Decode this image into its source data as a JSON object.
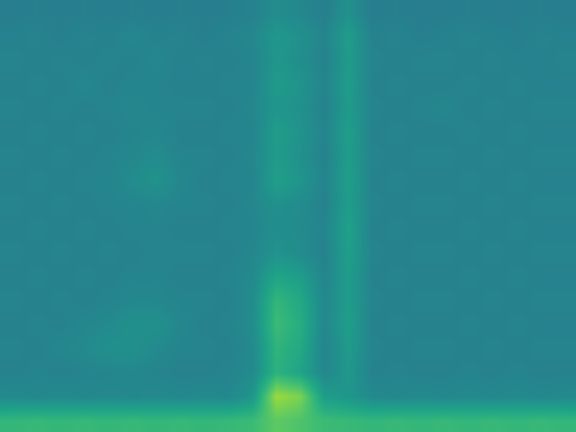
{
  "chart_data": {
    "type": "heatmap",
    "tick_labels": false,
    "zlim": [
      0,
      1
    ],
    "cells": [
      [
        0.42,
        0.43,
        0.42,
        0.43,
        0.42,
        0.43,
        0.42,
        0.43,
        0.42,
        0.43,
        0.44,
        0.48,
        0.46,
        0.43,
        0.5,
        0.42,
        0.43,
        0.42,
        0.42,
        0.43,
        0.42,
        0.42,
        0.43,
        0.42
      ],
      [
        0.44,
        0.45,
        0.43,
        0.45,
        0.44,
        0.46,
        0.44,
        0.45,
        0.43,
        0.45,
        0.46,
        0.53,
        0.5,
        0.45,
        0.55,
        0.44,
        0.45,
        0.43,
        0.44,
        0.45,
        0.44,
        0.43,
        0.45,
        0.44
      ],
      [
        0.45,
        0.44,
        0.45,
        0.44,
        0.45,
        0.44,
        0.46,
        0.44,
        0.45,
        0.44,
        0.45,
        0.52,
        0.49,
        0.44,
        0.54,
        0.45,
        0.44,
        0.45,
        0.45,
        0.44,
        0.45,
        0.44,
        0.44,
        0.45
      ],
      [
        0.44,
        0.45,
        0.44,
        0.46,
        0.44,
        0.45,
        0.45,
        0.44,
        0.44,
        0.45,
        0.45,
        0.54,
        0.51,
        0.45,
        0.55,
        0.44,
        0.45,
        0.44,
        0.44,
        0.45,
        0.44,
        0.45,
        0.44,
        0.44
      ],
      [
        0.45,
        0.44,
        0.45,
        0.44,
        0.45,
        0.46,
        0.45,
        0.45,
        0.45,
        0.44,
        0.46,
        0.52,
        0.5,
        0.44,
        0.54,
        0.45,
        0.44,
        0.45,
        0.46,
        0.44,
        0.45,
        0.44,
        0.45,
        0.45
      ],
      [
        0.44,
        0.45,
        0.44,
        0.45,
        0.44,
        0.45,
        0.46,
        0.44,
        0.44,
        0.45,
        0.45,
        0.55,
        0.51,
        0.45,
        0.56,
        0.44,
        0.45,
        0.44,
        0.44,
        0.45,
        0.44,
        0.45,
        0.44,
        0.44
      ],
      [
        0.45,
        0.44,
        0.45,
        0.44,
        0.45,
        0.46,
        0.48,
        0.45,
        0.45,
        0.44,
        0.46,
        0.54,
        0.5,
        0.44,
        0.55,
        0.45,
        0.44,
        0.45,
        0.45,
        0.44,
        0.45,
        0.44,
        0.45,
        0.45
      ],
      [
        0.44,
        0.45,
        0.44,
        0.45,
        0.45,
        0.48,
        0.51,
        0.46,
        0.44,
        0.45,
        0.45,
        0.56,
        0.52,
        0.45,
        0.56,
        0.44,
        0.45,
        0.44,
        0.44,
        0.45,
        0.44,
        0.45,
        0.44,
        0.44
      ],
      [
        0.45,
        0.44,
        0.45,
        0.44,
        0.45,
        0.45,
        0.46,
        0.45,
        0.45,
        0.44,
        0.46,
        0.5,
        0.48,
        0.44,
        0.55,
        0.45,
        0.44,
        0.45,
        0.45,
        0.44,
        0.45,
        0.44,
        0.45,
        0.45
      ],
      [
        0.44,
        0.45,
        0.44,
        0.45,
        0.44,
        0.45,
        0.45,
        0.44,
        0.44,
        0.45,
        0.45,
        0.49,
        0.47,
        0.45,
        0.57,
        0.44,
        0.45,
        0.44,
        0.44,
        0.45,
        0.44,
        0.45,
        0.44,
        0.44
      ],
      [
        0.45,
        0.44,
        0.45,
        0.44,
        0.45,
        0.44,
        0.45,
        0.45,
        0.45,
        0.44,
        0.46,
        0.51,
        0.48,
        0.44,
        0.56,
        0.45,
        0.44,
        0.45,
        0.45,
        0.44,
        0.45,
        0.44,
        0.45,
        0.45
      ],
      [
        0.44,
        0.45,
        0.44,
        0.45,
        0.44,
        0.45,
        0.45,
        0.44,
        0.44,
        0.45,
        0.47,
        0.58,
        0.55,
        0.45,
        0.55,
        0.44,
        0.45,
        0.44,
        0.44,
        0.45,
        0.44,
        0.45,
        0.44,
        0.44
      ],
      [
        0.45,
        0.44,
        0.45,
        0.44,
        0.45,
        0.46,
        0.46,
        0.45,
        0.45,
        0.44,
        0.48,
        0.66,
        0.6,
        0.46,
        0.55,
        0.45,
        0.44,
        0.45,
        0.45,
        0.44,
        0.45,
        0.44,
        0.45,
        0.45
      ],
      [
        0.44,
        0.45,
        0.44,
        0.46,
        0.47,
        0.5,
        0.5,
        0.46,
        0.44,
        0.45,
        0.48,
        0.68,
        0.62,
        0.46,
        0.56,
        0.44,
        0.45,
        0.44,
        0.44,
        0.45,
        0.44,
        0.45,
        0.44,
        0.44
      ],
      [
        0.45,
        0.44,
        0.46,
        0.47,
        0.5,
        0.5,
        0.47,
        0.45,
        0.45,
        0.44,
        0.47,
        0.65,
        0.6,
        0.45,
        0.54,
        0.45,
        0.44,
        0.45,
        0.45,
        0.44,
        0.45,
        0.44,
        0.45,
        0.45
      ],
      [
        0.44,
        0.45,
        0.44,
        0.45,
        0.45,
        0.46,
        0.45,
        0.44,
        0.44,
        0.45,
        0.47,
        0.64,
        0.58,
        0.46,
        0.53,
        0.44,
        0.45,
        0.44,
        0.44,
        0.45,
        0.44,
        0.45,
        0.44,
        0.44
      ],
      [
        0.47,
        0.46,
        0.47,
        0.46,
        0.47,
        0.46,
        0.47,
        0.46,
        0.47,
        0.46,
        0.52,
        0.85,
        0.8,
        0.55,
        0.52,
        0.47,
        0.46,
        0.47,
        0.46,
        0.47,
        0.46,
        0.47,
        0.46,
        0.47
      ],
      [
        0.66,
        0.67,
        0.66,
        0.67,
        0.66,
        0.67,
        0.66,
        0.67,
        0.66,
        0.67,
        0.68,
        0.75,
        0.72,
        0.68,
        0.67,
        0.66,
        0.67,
        0.66,
        0.67,
        0.66,
        0.67,
        0.66,
        0.67,
        0.66
      ]
    ]
  }
}
